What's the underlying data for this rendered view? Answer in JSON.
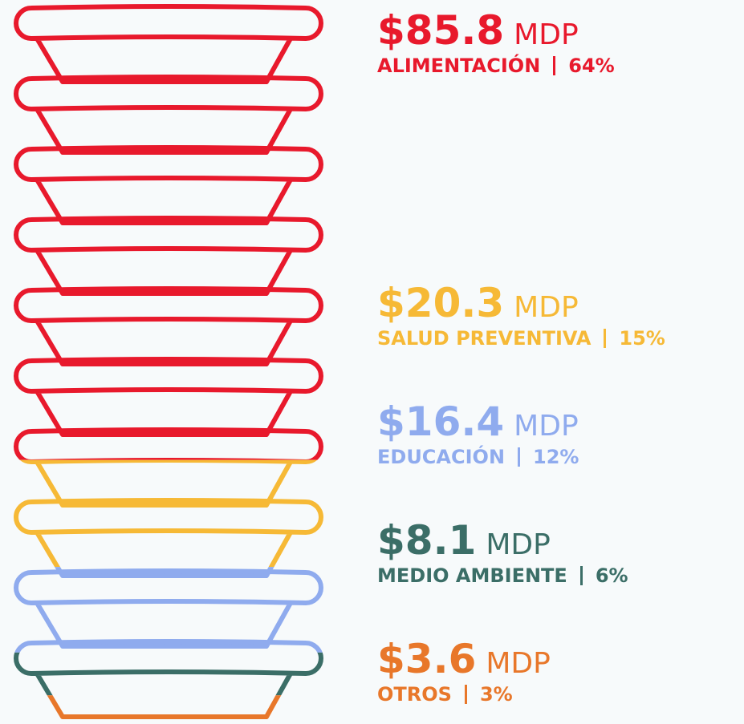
{
  "chart_data": {
    "type": "pictogram",
    "unit": "MDP",
    "series": [
      {
        "name": "ALIMENTACIÓN",
        "color": "#e8192c",
        "value": 85.8,
        "value_label": "$85.8",
        "share": 64,
        "share_label": "64%"
      },
      {
        "name": "SALUD PREVENTIVA",
        "color": "#f6b936",
        "value": 20.3,
        "value_label": "$20.3",
        "share": 15,
        "share_label": "15%"
      },
      {
        "name": "EDUCACIÓN",
        "color": "#8fabee",
        "value": 16.4,
        "value_label": "$16.4",
        "share": 12,
        "share_label": "12%"
      },
      {
        "name": "MEDIO AMBIENTE",
        "color": "#3b6e67",
        "value": 8.1,
        "value_label": "$8.1",
        "share": 6,
        "share_label": "6%"
      },
      {
        "name": "OTROS",
        "color": "#e8772a",
        "value": 3.6,
        "value_label": "$3.6",
        "share": 3,
        "share_label": "3%"
      }
    ]
  }
}
